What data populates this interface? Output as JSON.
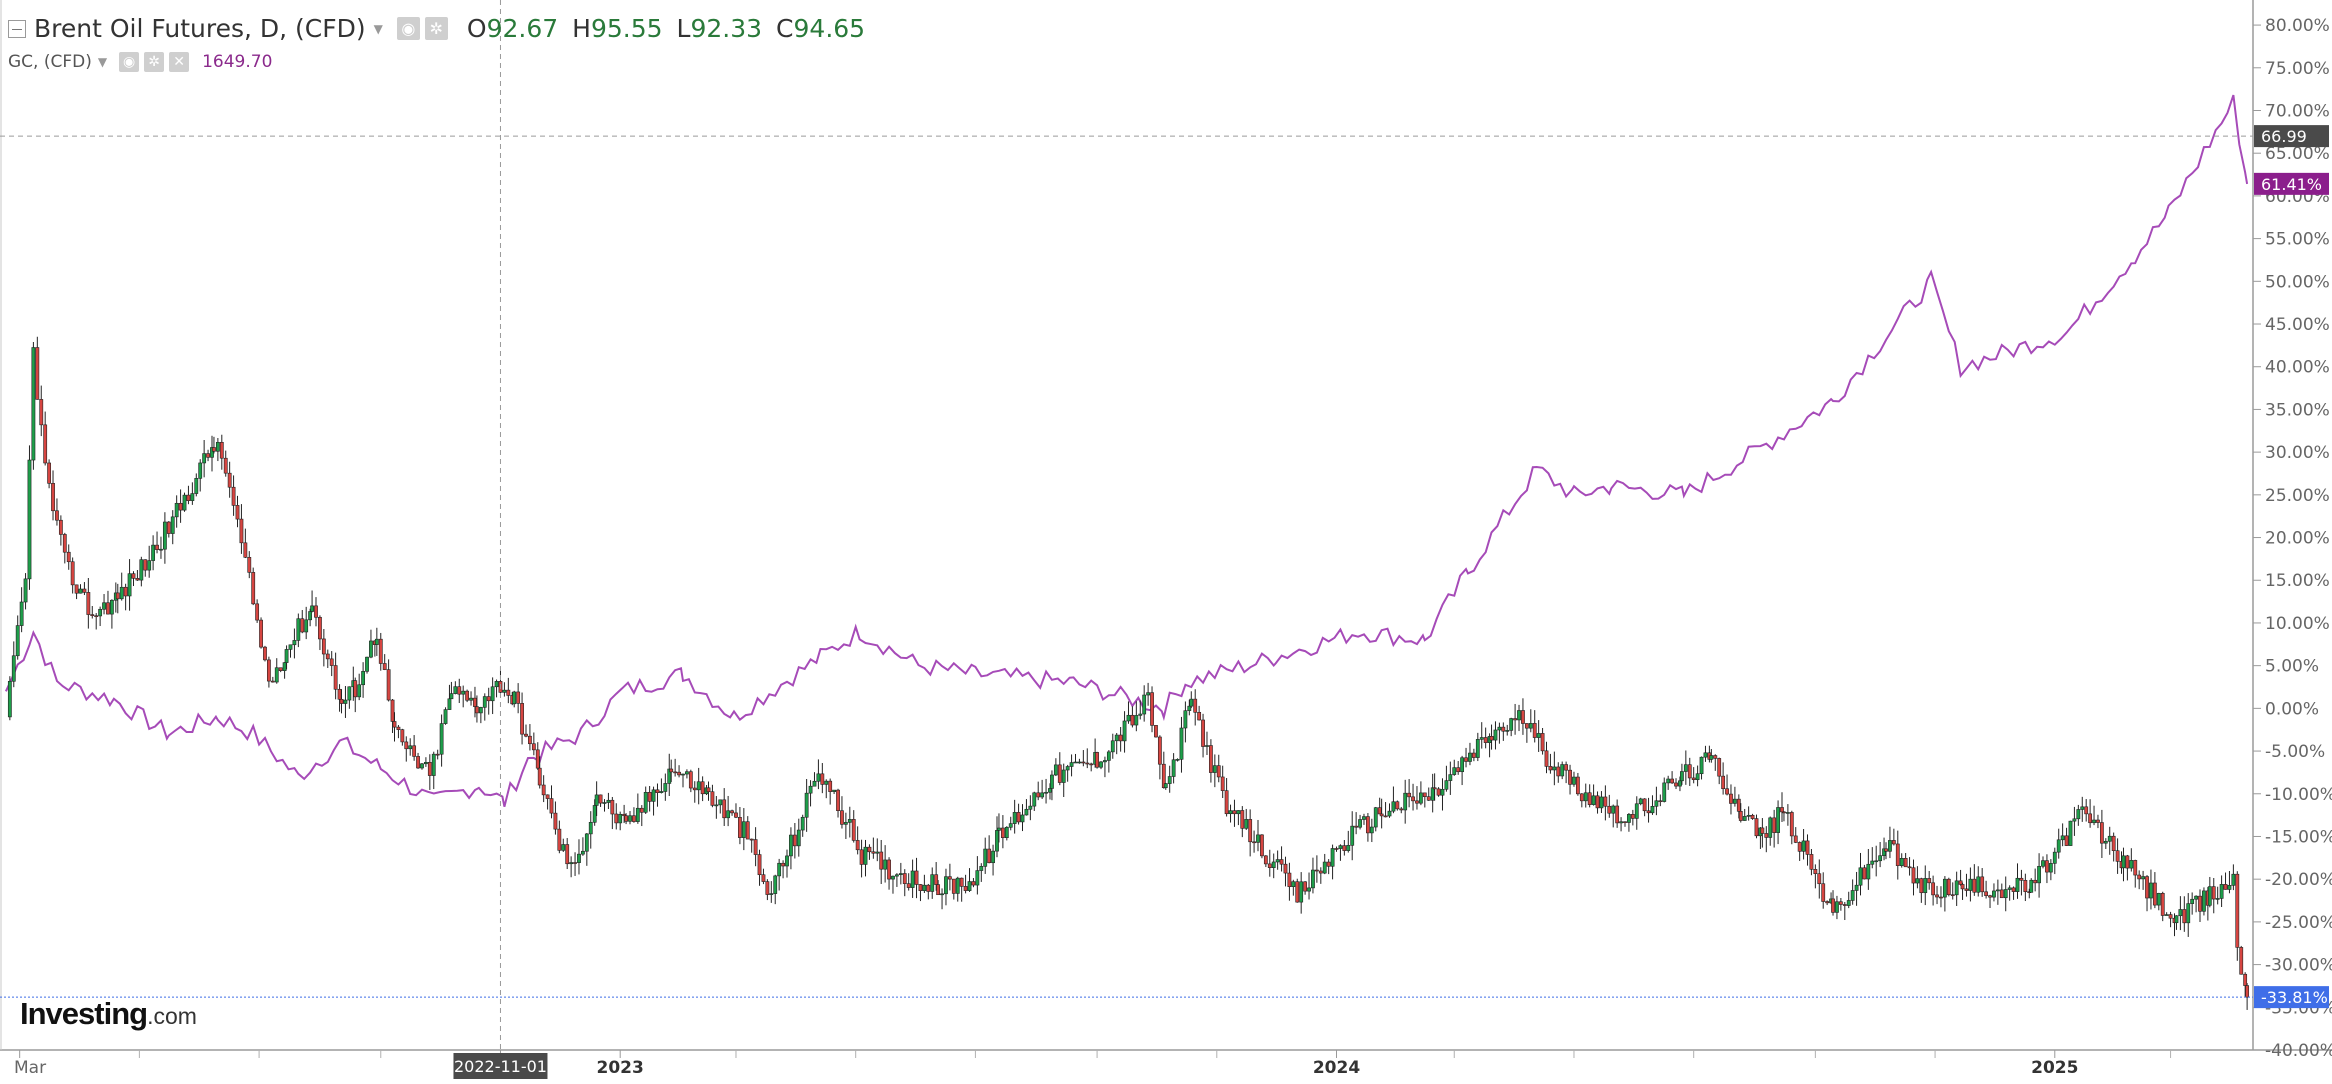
{
  "legend": {
    "main": {
      "symbol": "Brent Oil Futures, D, (CFD)",
      "o_label": "O",
      "o": "92.67",
      "h_label": "H",
      "h": "95.55",
      "l_label": "L",
      "l": "92.33",
      "c_label": "C",
      "c": "94.65"
    },
    "compare": {
      "symbol": "GC, (CFD)",
      "value": "1649.70"
    }
  },
  "logo": {
    "brand": "Investing",
    "suffix": ".com"
  },
  "crosshair": {
    "date_label": "2022-11-01",
    "price_label": "66.99"
  },
  "colors": {
    "up": "#1e9e4a",
    "down": "#d64541",
    "gold": "#a64bb8",
    "gold_badge": "#8b1e8c",
    "last_badge": "#3f6ee8",
    "axis_text": "#666666"
  },
  "chart_data": [
    {
      "type": "line",
      "subtype": "candlestick-comparison",
      "title": "Brent Oil Futures, D, (CFD)",
      "ylabel": "",
      "y_unit": "% change",
      "ylim": [
        -40,
        82
      ],
      "yticks": [
        80,
        75,
        70,
        65,
        60,
        55,
        50,
        45,
        40,
        35,
        30,
        25,
        20,
        15,
        10,
        5,
        0,
        -5,
        -10,
        -15,
        -20,
        -25,
        -30,
        -35,
        -40
      ],
      "x_tick_labels": [
        "Mar",
        "2022-11-01",
        "2023",
        "2024",
        "2025"
      ],
      "x_tick_dates": [
        "2022-03-01",
        "2022-11-01",
        "2023-01-01",
        "2024-01-01",
        "2025-01-01"
      ],
      "xlim": [
        "2022-02-20",
        "2025-04-12"
      ],
      "month_ticks": [
        "2022-05-01",
        "2022-07-01",
        "2022-09-01",
        "2023-03-01",
        "2023-05-01",
        "2023-07-01",
        "2023-09-01",
        "2023-11-01",
        "2024-03-01",
        "2024-05-01",
        "2024-07-01",
        "2024-09-01",
        "2024-11-01",
        "2025-03-01"
      ],
      "grid": false,
      "series": [
        {
          "name": "Brent Oil Futures, D, (CFD)",
          "style": "candlestick",
          "x": [
            "2022-02-22",
            "2022-02-28",
            "2022-03-04",
            "2022-03-08",
            "2022-03-14",
            "2022-03-24",
            "2022-04-07",
            "2022-04-20",
            "2022-05-04",
            "2022-05-18",
            "2022-06-08",
            "2022-06-14",
            "2022-06-24",
            "2022-07-06",
            "2022-07-15",
            "2022-07-28",
            "2022-08-12",
            "2022-08-19",
            "2022-08-30",
            "2022-09-08",
            "2022-09-26",
            "2022-10-07",
            "2022-10-20",
            "2022-11-01",
            "2022-11-08",
            "2022-11-21",
            "2022-12-01",
            "2022-12-09",
            "2022-12-20",
            "2023-01-04",
            "2023-01-27",
            "2023-02-15",
            "2023-03-07",
            "2023-03-17",
            "2023-03-31",
            "2023-04-12",
            "2023-05-04",
            "2023-05-20",
            "2023-06-12",
            "2023-06-30",
            "2023-07-13",
            "2023-08-09",
            "2023-09-01",
            "2023-09-27",
            "2023-10-06",
            "2023-10-19",
            "2023-11-06",
            "2023-11-16",
            "2023-12-12",
            "2024-01-03",
            "2024-01-24",
            "2024-02-20",
            "2024-03-20",
            "2024-04-05",
            "2024-04-15",
            "2024-05-01",
            "2024-05-29",
            "2024-06-25",
            "2024-07-10",
            "2024-07-25",
            "2024-08-05",
            "2024-08-16",
            "2024-09-10",
            "2024-10-07",
            "2024-10-25",
            "2024-11-15",
            "2024-12-20",
            "2025-01-15",
            "2025-02-05",
            "2025-03-04",
            "2025-03-21",
            "2025-04-02",
            "2025-04-04",
            "2025-04-09"
          ],
          "values": [
            -1.0,
            8.5,
            15.0,
            42.0,
            28.0,
            17.0,
            11.0,
            13.0,
            17.0,
            22.0,
            31.0,
            28.0,
            17.0,
            3.0,
            7.0,
            12.0,
            0.5,
            2.5,
            9.0,
            -3.0,
            -8.0,
            2.0,
            0.5,
            3.0,
            1.0,
            -8.0,
            -16.0,
            -19.0,
            -10.0,
            -14.0,
            -7.0,
            -10.0,
            -15.0,
            -22.0,
            -15.0,
            -7.0,
            -17.0,
            -19.0,
            -21.0,
            -20.0,
            -15.0,
            -8.0,
            -6.0,
            1.0,
            -10.0,
            1.0,
            -12.0,
            -14.0,
            -22.0,
            -16.0,
            -12.0,
            -10.0,
            -3.0,
            -1.0,
            -5.0,
            -9.0,
            -13.0,
            -8.0,
            -6.0,
            -12.0,
            -15.0,
            -12.0,
            -24.0,
            -16.0,
            -21.0,
            -21.0,
            -21.0,
            -12.0,
            -18.0,
            -25.0,
            -22.0,
            -20.0,
            -28.0,
            -33.81
          ]
        },
        {
          "name": "GC, (CFD)",
          "style": "line",
          "x": [
            "2022-02-22",
            "2022-03-08",
            "2022-03-20",
            "2022-04-18",
            "2022-05-16",
            "2022-06-10",
            "2022-06-28",
            "2022-07-21",
            "2022-08-12",
            "2022-09-01",
            "2022-09-28",
            "2022-10-21",
            "2022-11-03",
            "2022-11-15",
            "2022-12-12",
            "2023-01-02",
            "2023-02-02",
            "2023-02-28",
            "2023-04-13",
            "2023-05-03",
            "2023-06-02",
            "2023-07-01",
            "2023-08-20",
            "2023-10-05",
            "2023-10-16",
            "2023-12-01",
            "2024-01-12",
            "2024-02-15",
            "2024-03-08",
            "2024-04-12",
            "2024-05-01",
            "2024-05-20",
            "2024-06-26",
            "2024-08-01",
            "2024-09-10",
            "2024-10-30",
            "2024-11-14",
            "2024-12-11",
            "2025-01-07",
            "2025-02-11",
            "2025-02-28",
            "2025-04-02",
            "2025-04-09"
          ],
          "values": [
            2.0,
            9.0,
            3.0,
            1.0,
            -3.0,
            -1.0,
            -3.0,
            -8.0,
            -4.0,
            -7.0,
            -11.0,
            -9.0,
            -11.0,
            -6.0,
            -3.0,
            2.0,
            4.0,
            -1.0,
            6.0,
            9.0,
            5.0,
            4.0,
            3.0,
            0.0,
            3.0,
            6.0,
            9.0,
            8.0,
            16.0,
            28.0,
            25.0,
            26.0,
            25.0,
            30.0,
            36.0,
            50.0,
            40.0,
            42.0,
            44.0,
            53.0,
            58.0,
            71.0,
            61.41
          ]
        }
      ],
      "price_badges": {
        "last_brent": "-33.81%",
        "last_gold": "61.41%",
        "crosshair_price": "66.99"
      }
    }
  ]
}
